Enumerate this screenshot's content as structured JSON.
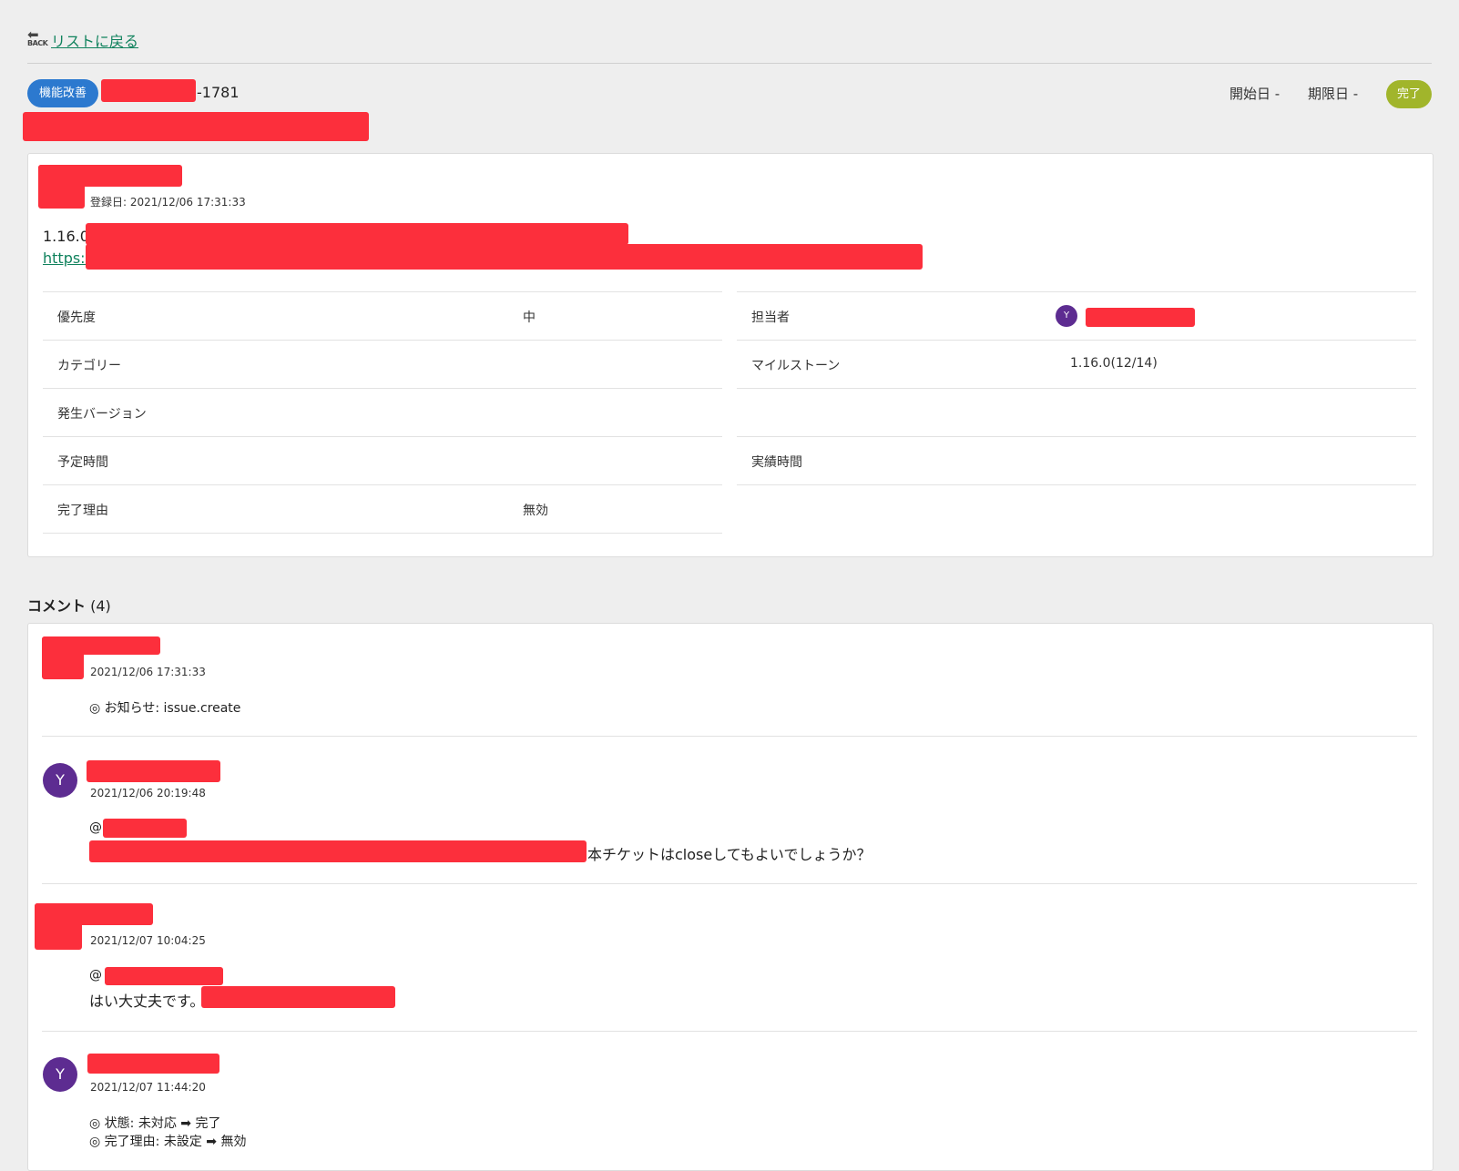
{
  "back": {
    "icon_text": "BACK",
    "label": "リストに戻る"
  },
  "header": {
    "type_badge": "機能改善",
    "issue_key_suffix": "-1781",
    "start_date": "開始日 -",
    "due_date": "期限日 -",
    "status_badge": "完了"
  },
  "issue": {
    "registered": "登録日: 2021/12/06 17:31:33",
    "desc_line1": "1.16.0",
    "desc_link": "https://",
    "colors": {
      "link": "#10825d",
      "type_badge": "#2c79cf",
      "status_badge": "#a1b52b",
      "avatar": "#5d2c91",
      "redaction": "#fc2f3c"
    }
  },
  "properties": {
    "left": [
      {
        "label": "優先度",
        "value": "中"
      },
      {
        "label": "カテゴリー",
        "value": ""
      },
      {
        "label": "発生バージョン",
        "value": ""
      },
      {
        "label": "予定時間",
        "value": ""
      },
      {
        "label": "完了理由",
        "value": "無効"
      }
    ],
    "right": [
      {
        "label": "担当者",
        "avatar": "Y"
      },
      {
        "label": "マイルストーン",
        "value": "1.16.0(12/14)"
      },
      {
        "label": "",
        "value": ""
      },
      {
        "label": "実績時間",
        "value": ""
      }
    ]
  },
  "comments": {
    "title": "コメント",
    "count": "(4)",
    "items": [
      {
        "time": "2021/12/06 17:31:33",
        "lines": [
          "◎ お知らせ: issue.create"
        ]
      },
      {
        "avatar": "Y",
        "time": "2021/12/06 20:19:48",
        "mention": "@",
        "text": "本チケットはcloseしてもよいでしょうか？"
      },
      {
        "time": "2021/12/07 10:04:25",
        "mention": "@",
        "text": "はい大丈夫です。"
      },
      {
        "avatar": "Y",
        "time": "2021/12/07 11:44:20",
        "lines": [
          "◎ 状態: 未対応 ➡ 完了",
          "◎ 完了理由: 未設定 ➡ 無効"
        ]
      }
    ]
  }
}
